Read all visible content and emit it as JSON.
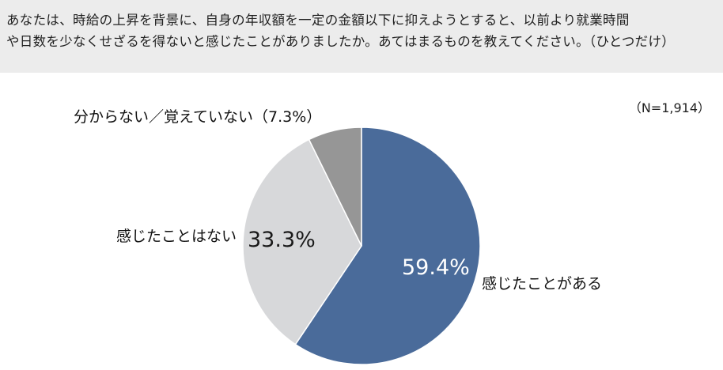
{
  "question": {
    "line1": "あなたは、時給の上昇を背景に、自身の年収額を一定の金額以下に抑えようとすると、以前より就業時間",
    "line2": "や日数を少なくせざるを得ないと感じたことがありましたか。あてはまるものを教えてください。（ひとつだけ）"
  },
  "sample_size": "（N=1,914）",
  "chart_data": {
    "type": "pie",
    "start_angle_deg": 0,
    "direction": "clockwise",
    "slices": [
      {
        "label": "感じたことがある",
        "value": 59.4,
        "value_label": "59.4%",
        "color": "#4a6b9a"
      },
      {
        "label": "感じたことはない",
        "value": 33.3,
        "value_label": "33.3%",
        "color": "#d7d8da"
      },
      {
        "label": "分からない／覚えていない（7.3%）",
        "value": 7.3,
        "value_label": "",
        "color": "#969696"
      }
    ]
  }
}
